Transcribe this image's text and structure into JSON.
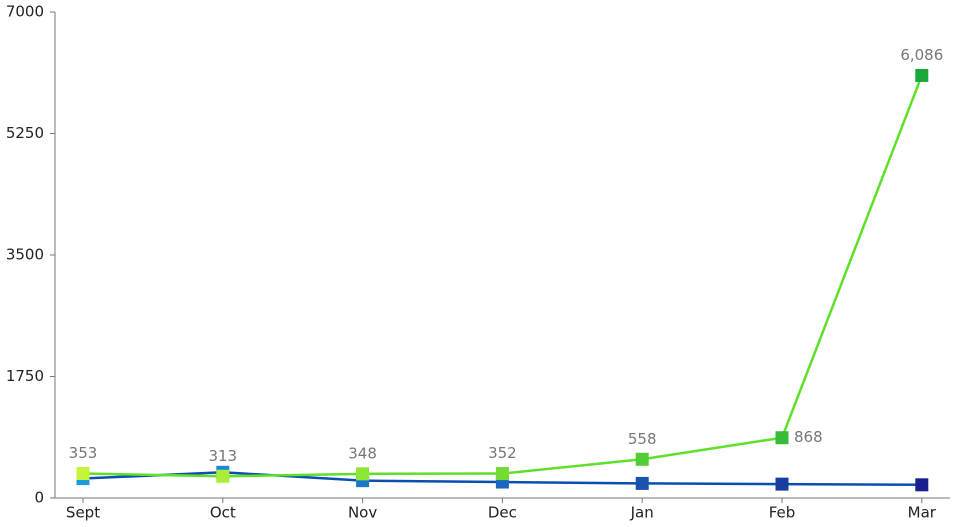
{
  "chart_data": {
    "type": "line",
    "categories": [
      "Sept",
      "Oct",
      "Nov",
      "Dec",
      "Jan",
      "Feb",
      "Mar"
    ],
    "series": [
      {
        "color": "#0a4fb0",
        "marker_colors": [
          "#1a9be0",
          "#1a8ad8",
          "#1a78cc",
          "#1a66c0",
          "#1a52b0",
          "#1a3ea0",
          "#1a1f8f"
        ],
        "values": [
          280,
          370,
          250,
          230,
          210,
          200,
          190
        ]
      },
      {
        "color": "#5ee02a",
        "marker_colors": [
          "#c4f53a",
          "#aaee38",
          "#8ee636",
          "#72dc34",
          "#52cc34",
          "#38bb36",
          "#1aa83a"
        ],
        "values": [
          353,
          313,
          348,
          352,
          558,
          868,
          6086
        ],
        "value_labels": [
          "353",
          "313",
          "348",
          "352",
          "558",
          "868",
          "6,086"
        ]
      }
    ],
    "ylim": [
      0,
      7000
    ],
    "yticks": [
      0,
      1750,
      3500,
      5250,
      7000
    ],
    "grid": false
  }
}
